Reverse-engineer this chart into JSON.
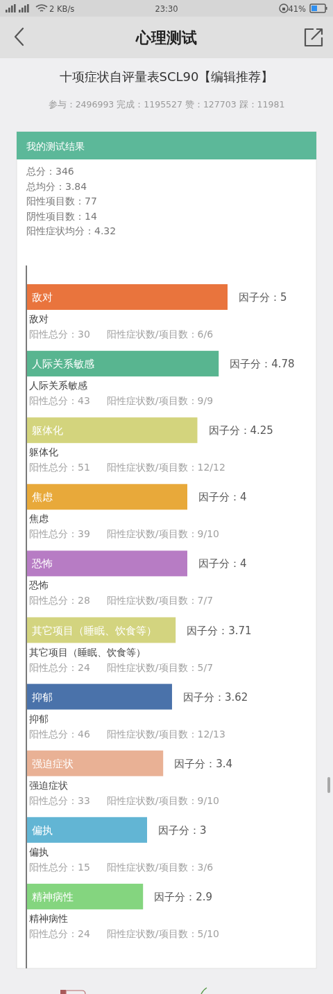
{
  "chart_data": {
    "type": "bar",
    "orientation": "horizontal",
    "title": "十项症状自评量表SCL90【编辑推荐】",
    "subtitle": "参与：2496993 完成：1195527 赞：127703 踩：11981",
    "categories": [
      "敌对",
      "人际关系敏感",
      "躯体化",
      "焦虑",
      "恐怖",
      "其它项目（睡眠、饮食等）",
      "抑郁",
      "强迫症状",
      "偏执",
      "精神病性"
    ],
    "values": [
      5,
      4.78,
      4.25,
      4,
      4,
      3.71,
      3.62,
      3.4,
      3,
      2.9
    ],
    "colors": [
      "#e9743d",
      "#58b590",
      "#d3d47d",
      "#e8a93a",
      "#b77cc4",
      "#d3d47f",
      "#4a72aa",
      "#e9b195",
      "#62b5d4",
      "#84d57f"
    ],
    "value_labels": [
      "因子分：5",
      "因子分：4.78",
      "因子分：4.25",
      "因子分：4",
      "因子分：4",
      "因子分：3.71",
      "因子分：3.62",
      "因子分：3.4",
      "因子分：3",
      "因子分：2.9"
    ],
    "annotations": [
      "心理测试",
      "2 KB/s",
      "23:30",
      "41%",
      "我的测试结果",
      "总分：346",
      "总均分：3.84",
      "阳性项目数：77",
      "阴性项目数：14",
      "阳性症状均分：4.32",
      "阳性总分：30",
      "阳性症状数/项目数：6/6",
      "阳性总分：43",
      "阳性症状数/项目数：9/9",
      "阳性总分：51",
      "阳性症状数/项目数：12/12",
      "阳性总分：39",
      "阳性症状数/项目数：9/10",
      "阳性总分：28",
      "阳性症状数/项目数：7/7",
      "阳性总分：24",
      "阳性症状数/项目数：5/7",
      "阳性总分：46",
      "阳性症状数/项目数：12/13",
      "阳性总分：33",
      "阳性症状数/项目数：9/10",
      "阳性总分：15",
      "阳性症状数/项目数：3/6",
      "阳性总分：24",
      "阳性症状数/项目数：5/10"
    ]
  }
}
